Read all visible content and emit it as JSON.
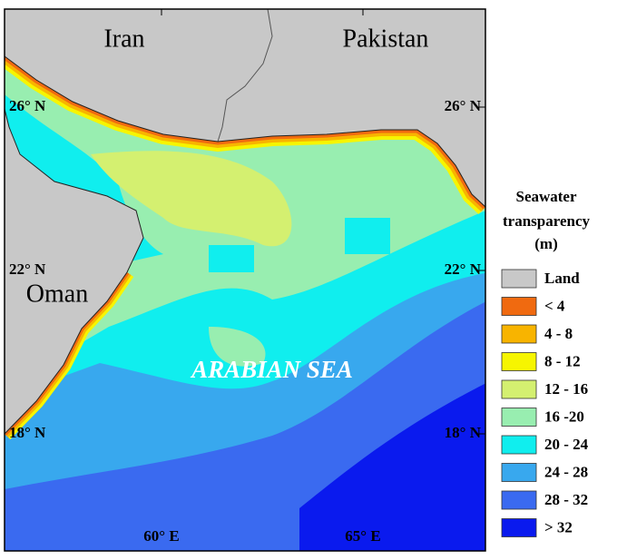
{
  "map": {
    "place_labels": {
      "iran": "Iran",
      "pakistan": "Pakistan",
      "oman": "Oman",
      "sea": "ARABIAN SEA"
    },
    "latitudes": [
      "26° N",
      "22° N",
      "18° N"
    ],
    "longitudes": [
      "60° E",
      "65° E"
    ],
    "legend": {
      "title": [
        "Seawater",
        "transparency",
        "(m)"
      ],
      "items": [
        {
          "label": "Land",
          "color": "#c8c8c8"
        },
        {
          "label": "< 4",
          "color": "#f06a10"
        },
        {
          "label": "4 - 8",
          "color": "#f8b400"
        },
        {
          "label": "8 - 12",
          "color": "#f6f500"
        },
        {
          "label": "12 - 16",
          "color": "#d4f070"
        },
        {
          "label": "16 -20",
          "color": "#98eeb0"
        },
        {
          "label": "20 - 24",
          "color": "#10eeee"
        },
        {
          "label": "24 - 28",
          "color": "#38a8ee"
        },
        {
          "label": "28 - 32",
          "color": "#3a6af0"
        },
        {
          "label": "> 32",
          "color": "#0a1aee"
        }
      ]
    }
  }
}
